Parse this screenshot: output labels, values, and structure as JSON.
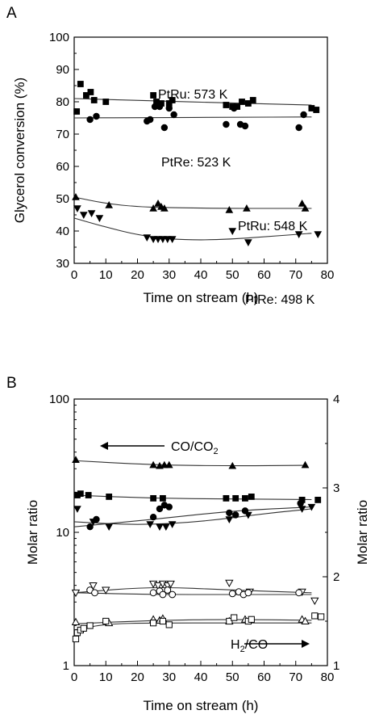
{
  "chart_data": [
    {
      "panel_label": "A",
      "type": "scatter",
      "xlabel": "Time on stream (h)",
      "ylabel": "Glycerol conversion (%)",
      "xlim": [
        0,
        80
      ],
      "ylim": [
        30,
        100
      ],
      "xticks": [
        0,
        10,
        20,
        30,
        40,
        50,
        60,
        70,
        80
      ],
      "yticks": [
        30,
        40,
        50,
        60,
        70,
        80,
        90,
        100
      ],
      "grid": false,
      "annotations": [
        {
          "text": "PtRu: 573 K",
          "x": 30,
          "y": 83.5
        },
        {
          "text": "PtRe: 523 K",
          "x": 31,
          "y": 69.5
        },
        {
          "text": "PtRu: 548 K",
          "x": 49.5,
          "y": 51
        },
        {
          "text": "PtRe: 498 K",
          "x": 53,
          "y": 35
        }
      ],
      "series": [
        {
          "marker": "square-filled",
          "x": [
            0.8,
            2.0,
            3.8,
            5.2,
            6.3,
            10.0,
            25.0,
            26.0,
            27.5,
            30.0,
            31.0,
            48.0,
            50.0,
            51.5,
            53.0,
            55.0,
            56.5,
            75.0,
            76.5
          ],
          "y": [
            77,
            85.5,
            82,
            83,
            80.5,
            80,
            82,
            80,
            79.5,
            79.5,
            80.5,
            79,
            78.5,
            78.5,
            80,
            79.5,
            80.5,
            78,
            77.5
          ],
          "fit": [
            [
              0,
              81
            ],
            [
              25,
              80.3
            ],
            [
              50,
              79.6
            ],
            [
              75,
              79
            ]
          ]
        },
        {
          "marker": "circle-filled",
          "x": [
            5.0,
            7.0,
            23.0,
            24.0,
            25.5,
            27.0,
            28.5,
            30.0,
            31.5,
            48.0,
            50.5,
            52.5,
            54.0,
            71.0,
            72.5
          ],
          "y": [
            74.5,
            75.5,
            74,
            74.5,
            78.5,
            78.5,
            72,
            78,
            76,
            73,
            78,
            73,
            72.5,
            72,
            76
          ],
          "fit": [
            [
              0,
              75
            ],
            [
              25,
              75.1
            ],
            [
              50,
              75.2
            ],
            [
              75,
              75.3
            ]
          ]
        },
        {
          "marker": "triangle-up-filled",
          "x": [
            0.5,
            11.0,
            25.0,
            26.5,
            27.5,
            28.5,
            49.0,
            54.5,
            72.0,
            73.0
          ],
          "y": [
            50.5,
            48,
            47,
            48.5,
            47.5,
            47,
            46.5,
            47,
            48.5,
            47
          ],
          "fit": [
            [
              0,
              50.5
            ],
            [
              10,
              48.5
            ],
            [
              20,
              47.5
            ],
            [
              30,
              47.2
            ],
            [
              50,
              47
            ],
            [
              75,
              47
            ]
          ]
        },
        {
          "marker": "triangle-down-filled",
          "x": [
            1.0,
            3.0,
            5.5,
            8.0,
            23.0,
            25.0,
            26.5,
            28.0,
            29.5,
            31.0,
            50.0,
            55.0,
            71.0,
            77.0
          ],
          "y": [
            47,
            45,
            45.5,
            44,
            38,
            37.5,
            37.5,
            37.5,
            37.5,
            37.5,
            40,
            36.5,
            39,
            39
          ],
          "fit": [
            [
              0,
              44
            ],
            [
              10,
              41.2
            ],
            [
              20,
              38.8
            ],
            [
              30,
              37.5
            ],
            [
              40,
              37.2
            ],
            [
              50,
              37.5
            ],
            [
              60,
              38.2
            ],
            [
              75,
              39.3
            ]
          ]
        }
      ]
    },
    {
      "panel_label": "B",
      "type": "scatter",
      "xlabel": "Time on stream (h)",
      "ylabel": "Molar ratio",
      "ylabel_right": "Molar ratio",
      "xlim": [
        0,
        80
      ],
      "xticks": [
        0,
        10,
        20,
        30,
        40,
        50,
        60,
        70,
        80
      ],
      "ylim": [
        1,
        100
      ],
      "yscale": "log",
      "yticks": [
        1,
        10,
        100
      ],
      "ylim_right": [
        1,
        4
      ],
      "yticks_right": [
        1,
        2,
        3,
        4
      ],
      "grid": false,
      "annotations": [
        {
          "text": "CO/CO",
          "subscript": "2",
          "arrow": "left"
        },
        {
          "text": "H",
          "subscript": "2",
          "suffix": "/CO",
          "arrow": "right"
        }
      ],
      "series": [
        {
          "marker": "triangle-up-filled",
          "axis": "left",
          "x": [
            0.5,
            25.0,
            27.0,
            28.5,
            30.0,
            50.0,
            73.0
          ],
          "y": [
            35,
            32,
            31.5,
            32,
            32,
            31.5,
            32
          ],
          "fit": [
            [
              0,
              34.5
            ],
            [
              25,
              32
            ],
            [
              50,
              31.5
            ],
            [
              73,
              31.8
            ]
          ]
        },
        {
          "marker": "square-filled",
          "axis": "left",
          "x": [
            1.0,
            2.0,
            4.5,
            11.0,
            25.0,
            28.0,
            48.0,
            51.0,
            54.0,
            56.0,
            72.0,
            77.0
          ],
          "y": [
            19,
            19.5,
            19,
            18.5,
            18,
            18,
            18,
            18,
            18,
            18.5,
            17.5,
            17.5
          ],
          "fit": [
            [
              0,
              19
            ],
            [
              25,
              18
            ],
            [
              50,
              17.8
            ],
            [
              75,
              17.6
            ]
          ]
        },
        {
          "marker": "circle-filled",
          "axis": "left",
          "x": [
            5.0,
            7.0,
            25.0,
            27.0,
            28.5,
            30.0,
            49.0,
            51.0,
            54.0,
            71.5
          ],
          "y": [
            11,
            12.5,
            13,
            15,
            16,
            15.5,
            14,
            13.5,
            14.5,
            16.5
          ],
          "fit": [
            [
              0,
              11
            ],
            [
              25,
              12.5
            ],
            [
              50,
              14.5
            ],
            [
              75,
              15.5
            ]
          ]
        },
        {
          "marker": "triangle-down-filled",
          "axis": "left",
          "x": [
            1.0,
            6.0,
            11.0,
            24.0,
            27.0,
            29.0,
            31.0,
            49.0,
            55.0,
            72.0,
            75.0
          ],
          "y": [
            15,
            12,
            11,
            11.5,
            11,
            11,
            11.5,
            12.5,
            13.5,
            15,
            15.5
          ],
          "fit": [
            [
              0,
              12
            ],
            [
              20,
              11.3
            ],
            [
              40,
              12
            ],
            [
              60,
              13.8
            ],
            [
              75,
              15
            ]
          ]
        },
        {
          "marker": "triangle-down-open",
          "axis": "right",
          "x": [
            0.5,
            6.0,
            10.0,
            25.0,
            26.5,
            28.0,
            29.5,
            30.5,
            49.0,
            55.5,
            72.0,
            76.0
          ],
          "y": [
            1.82,
            1.9,
            1.85,
            1.92,
            1.9,
            1.92,
            1.9,
            1.92,
            1.93,
            1.83,
            1.83,
            1.73
          ],
          "fit": [
            [
              0,
              1.82
            ],
            [
              25,
              1.89
            ],
            [
              50,
              1.85
            ],
            [
              75,
              1.82
            ]
          ]
        },
        {
          "marker": "circle-open",
          "axis": "right",
          "x": [
            5.0,
            6.5,
            25.0,
            27.0,
            28.0,
            29.5,
            31.0,
            50.0,
            52.0,
            53.5,
            55.0,
            71.0
          ],
          "y": [
            1.85,
            1.82,
            1.82,
            1.84,
            1.8,
            1.85,
            1.8,
            1.81,
            1.83,
            1.8,
            1.82,
            1.82
          ],
          "fit": [
            [
              0,
              1.82
            ],
            [
              25,
              1.8
            ],
            [
              50,
              1.8
            ],
            [
              75,
              1.8
            ]
          ]
        },
        {
          "marker": "triangle-up-open",
          "axis": "right",
          "x": [
            0.5,
            11.0,
            25.0,
            27.0,
            28.0,
            49.0,
            54.0,
            72.0,
            73.0
          ],
          "y": [
            1.49,
            1.48,
            1.52,
            1.51,
            1.53,
            1.5,
            1.52,
            1.52,
            1.5
          ],
          "fit": [
            [
              0,
              1.47
            ],
            [
              25,
              1.51
            ],
            [
              50,
              1.52
            ],
            [
              75,
              1.51
            ]
          ]
        },
        {
          "marker": "square-open",
          "axis": "right",
          "x": [
            0.5,
            1.0,
            2.0,
            3.0,
            5.0,
            10.0,
            25.0,
            28.0,
            30.0,
            49.0,
            50.5,
            55.0,
            56.0,
            76.0,
            78.0
          ],
          "y": [
            1.3,
            1.37,
            1.4,
            1.42,
            1.45,
            1.5,
            1.48,
            1.5,
            1.46,
            1.5,
            1.54,
            1.5,
            1.52,
            1.56,
            1.55
          ],
          "fit": [
            [
              0,
              1.4
            ],
            [
              10,
              1.47
            ],
            [
              25,
              1.48
            ],
            [
              50,
              1.48
            ],
            [
              75,
              1.48
            ]
          ]
        }
      ]
    }
  ]
}
